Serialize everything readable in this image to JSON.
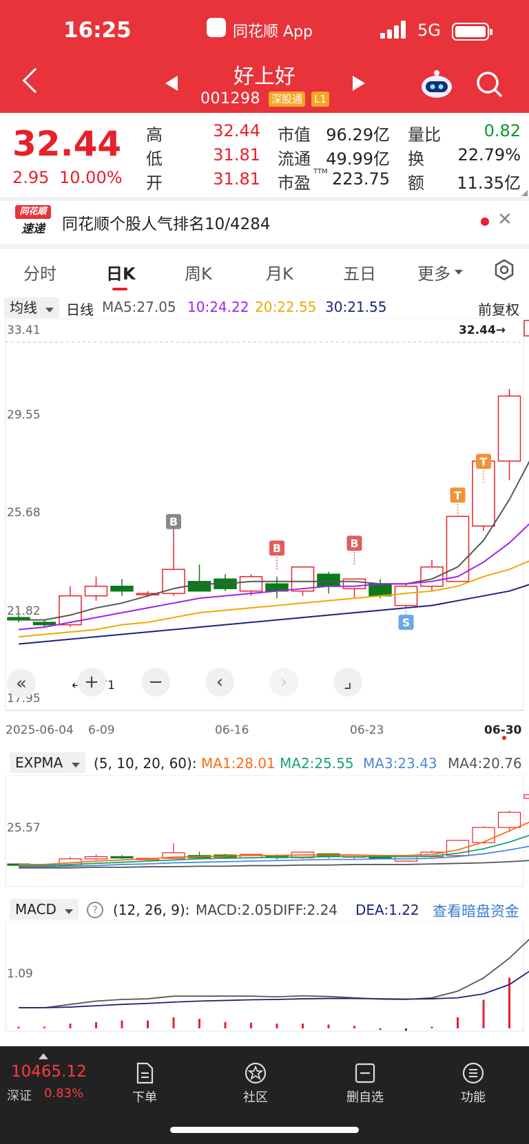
{
  "status": {
    "time": "16:25",
    "app_name": "同花顺 App",
    "network": "5G"
  },
  "header": {
    "title": "好上好",
    "code": "001298",
    "badges": [
      "深股通",
      "L1"
    ]
  },
  "quote": {
    "price": "32.44",
    "change": "2.95",
    "change_pct": "10.00%",
    "labels": {
      "high": "高",
      "low": "低",
      "open": "开",
      "mcap": "市值",
      "float": "流通",
      "pe": "市盈",
      "pe_sup": "TTM",
      "vol_ratio": "量比",
      "turnover": "换",
      "amount": "额"
    },
    "high": "32.44",
    "low": "31.81",
    "open": "31.81",
    "mcap": "96.29亿",
    "float": "49.99亿",
    "pe": "223.75",
    "vol_ratio": "0.82",
    "turnover": "22.79%",
    "amount": "11.35亿"
  },
  "news": {
    "logo_top": "同花顺",
    "logo_bottom": "速递",
    "text": "同花顺个股人气排名10/4284"
  },
  "tabs": [
    "分时",
    "日K",
    "周K",
    "月K",
    "五日",
    "更多"
  ],
  "ma": {
    "selector": "均线",
    "period": "日线",
    "ma5": "MA5:27.05",
    "ma10": "10:24.22",
    "ma20": "20:22.55",
    "ma30": "30:21.55",
    "adjust": "前复权"
  },
  "kline": {
    "y_ticks": [
      "33.41",
      "29.55",
      "25.68",
      "21.82",
      "17.95"
    ],
    "last_label": "32.44→",
    "low_label": "←19.71",
    "x_labels": [
      "2025-06-04",
      "6-09",
      "06-16",
      "06-23",
      "06-30"
    ],
    "signals": [
      "B",
      "B",
      "B",
      "T",
      "T",
      "S"
    ]
  },
  "expma": {
    "name": "EXPMA",
    "params": "(5, 10, 20, 60):",
    "ma1": "MA1:28.01",
    "ma2": "MA2:25.55",
    "ma3": "MA3:23.43",
    "ma4": "MA4:20.76",
    "y_tick": "25.57"
  },
  "macd": {
    "name": "MACD",
    "params": "(12, 26, 9):",
    "macd": "MACD:2.05",
    "diff": "DIFF:2.24",
    "dea": "DEA:1.22",
    "link": "查看暗盘资金",
    "y_tick": "1.09"
  },
  "bottom": {
    "index_value": "10465.12",
    "index_name": "深证",
    "index_change": "0.83%",
    "items": [
      "下单",
      "社区",
      "删自选",
      "功能"
    ]
  },
  "colors": {
    "up": "#e8202a",
    "down": "#0a7a1a",
    "ma5": "#555555",
    "ma10": "#a020f0",
    "ma20": "#f0a800",
    "ma30": "#1a237e"
  }
}
